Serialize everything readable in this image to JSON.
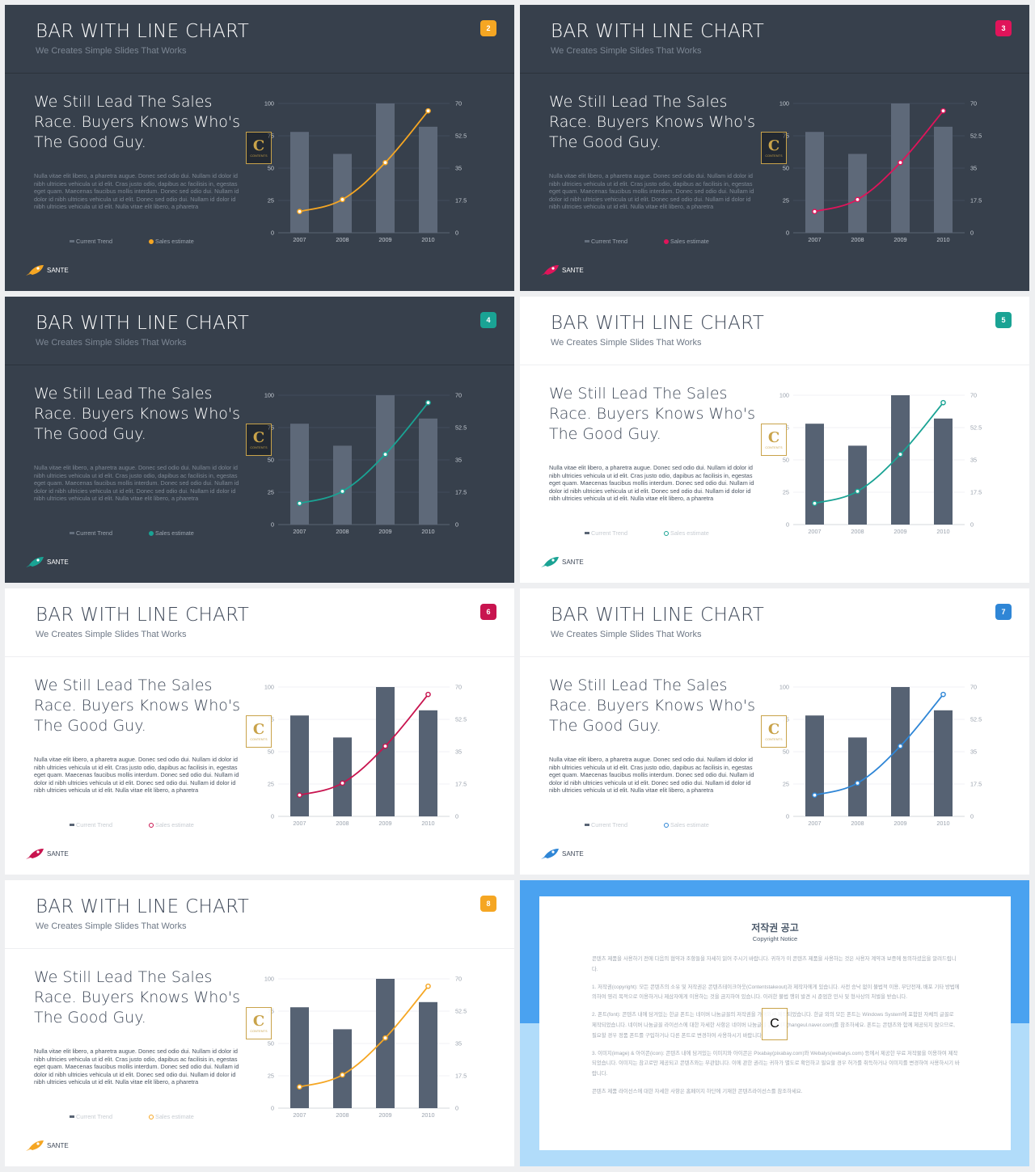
{
  "slides": [
    {
      "theme": "dark",
      "accent": "#f5a623",
      "badge": "2"
    },
    {
      "theme": "dark",
      "accent": "#e0145a",
      "badge": "3"
    },
    {
      "theme": "dark",
      "accent": "#1aa394",
      "badge": "4"
    },
    {
      "theme": "light",
      "accent": "#1aa394",
      "badge": "5"
    },
    {
      "theme": "light",
      "accent": "#c8144f",
      "badge": "6"
    },
    {
      "theme": "light",
      "accent": "#2f86d6",
      "badge": "7"
    },
    {
      "theme": "light",
      "accent": "#f5a623",
      "badge": "8"
    }
  ],
  "slide_text": {
    "title": "BAR WITH LINE CHART",
    "subtitle": "We Creates Simple Slides That Works",
    "headline": "We Still Lead The Sales Race. Buyers Knows Who's The Good Guy.",
    "body": "Nulla vitae elit libero, a pharetra augue. Donec sed odio dui. Nullam id dolor id nibh ultricies vehicula ut id elit. Cras justo odio, dapibus ac facilisis in, egestas eget quam. Maecenas faucibus mollis interdum. Donec sed odio dui. Nullam id dolor id nibh ultricies vehicula ut id elit. Donec sed odio dui. Nullam id dolor id nibh ultricies vehicula ut id elit. Nulla vitae elit libero, a pharetra",
    "logo": "SANTE",
    "watermark_letter": "C",
    "watermark_text": "CONTENTS"
  },
  "chart_data": {
    "type": "bar",
    "categories": [
      "2007",
      "2008",
      "2009",
      "2010"
    ],
    "series": [
      {
        "name": "Current Trend",
        "type": "bar",
        "axis": "left",
        "values": [
          78,
          61,
          100,
          82
        ]
      },
      {
        "name": "Sales estimate",
        "type": "line",
        "axis": "right",
        "values": [
          11.5,
          18,
          38,
          66
        ]
      }
    ],
    "left_axis": {
      "ticks": [
        "100",
        "75",
        "50",
        "25",
        "0"
      ],
      "ylim": [
        0,
        100
      ]
    },
    "right_axis": {
      "ticks": [
        "70",
        "52.5",
        "35",
        "17.5",
        "0"
      ],
      "ylim": [
        0,
        70
      ]
    },
    "legend": "bottom"
  },
  "copyright": {
    "title": "저작권 공고",
    "subtitle": "Copyright Notice",
    "paragraphs": [
      "콘텐츠 제품을 사용하기 전에 다음의 협약과 조항들을 자세히 읽어 주시기 바랍니다. 귀하가 이 콘텐츠 제품을 사용하는 것은 사용자 계약과 보증에 동의하셨음을 알려드립니다.",
      "1. 저작권(copyright): 모든 콘텐츠의 소유 및 저작권은 콘텐츠테이크아웃(Contentstakeout)과 제작자에게 있습니다. 사전 승낙 없이 불법적 이용, 무단전재, 배포 기타 방법에 의하여 영리 목적으로 이용하거나 제삼자에게 이용하는 것을 금지하여 있습니다. 이러한 불법 행위 발견 시 준엄한 민사 및 형사상의 처벌을 받습니다.",
      "2. 폰트(font): 콘텐츠 내에 담겨있는 한글 폰트는 네이버 나눔글꼴의 저작권을 가져와서 제작되었습니다. 한글 외의 모든 폰트는 Windows System에 포함된 자체의 글꼴로 제작되었습니다. 네이버 나눔글꼴 라이선스에 대한 자세한 사항은 네이버 나눔글꼴 홈페이지(hangeul.naver.com)를 참조하세요. 폰트는 콘텐츠와 함께 제공되지 않으므로, 필요할 경우 정품 폰트를 구입하거나 다른 폰트로 변경하여 사용하시기 바랍니다.",
      "3. 이미지(image) & 아이콘(icon): 콘텐츠 내에 담겨있는 이미지와 아이콘은 Pixabay(pixabay.com)와 Webalys(webalys.com) 등에서 제공한 무료 저작물을 이용하여 제작되었습니다. 이미지는 참고로만 제공되고 콘텐츠와는 무관합니다. 이에 관한 권리는 귀하가 별도로 확인하고 필요할 경우 허가를 취득하거나 이미지를 변경하여 사용하시기 바랍니다.",
      "콘텐츠 제품 라이선스에 대한 자세한 사항은 홈페이지 하단에 기재한 콘텐츠라이선스를 참조하세요."
    ]
  }
}
